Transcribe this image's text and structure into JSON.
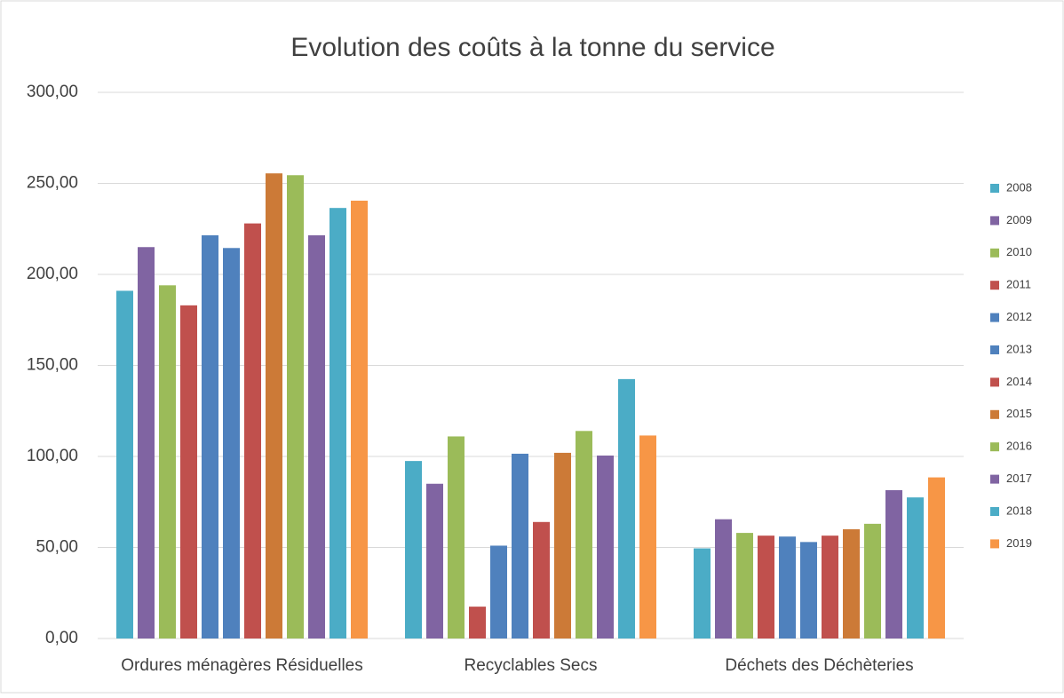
{
  "chart_data": {
    "type": "bar",
    "title": "Evolution des coûts à la tonne du service",
    "categories": [
      "Ordures ménagères Résiduelles",
      "Recyclables Secs",
      "Déchets des Déchèteries"
    ],
    "series": [
      {
        "name": "2008",
        "color": "#4bacc6",
        "values": [
          191,
          97.5,
          49.5
        ]
      },
      {
        "name": "2009",
        "color": "#8064a2",
        "values": [
          215,
          85,
          65.5
        ]
      },
      {
        "name": "2010",
        "color": "#9bbb59",
        "values": [
          194,
          111,
          58
        ]
      },
      {
        "name": "2011",
        "color": "#c0504d",
        "values": [
          183,
          17.5,
          56.5
        ]
      },
      {
        "name": "2012",
        "color": "#4f81bd",
        "values": [
          221.5,
          51,
          56
        ]
      },
      {
        "name": "2013",
        "color": "#4f81bd",
        "values": [
          214.5,
          101.5,
          53
        ]
      },
      {
        "name": "2014",
        "color": "#c0504d",
        "values": [
          228,
          64,
          56.5
        ]
      },
      {
        "name": "2015",
        "color": "#cc7a37",
        "values": [
          255.5,
          102,
          60
        ]
      },
      {
        "name": "2016",
        "color": "#9bbb59",
        "values": [
          254.5,
          114,
          63
        ]
      },
      {
        "name": "2017",
        "color": "#8064a2",
        "values": [
          221.5,
          100.5,
          81.5
        ]
      },
      {
        "name": "2018",
        "color": "#4bacc6",
        "values": [
          236.5,
          142.5,
          77.5
        ]
      },
      {
        "name": "2019",
        "color": "#f79646",
        "values": [
          240.5,
          111.5,
          88.5
        ]
      }
    ],
    "ylim": [
      0,
      300
    ],
    "yticks": [
      {
        "value": 0,
        "label": "0,00"
      },
      {
        "value": 50,
        "label": "50,00"
      },
      {
        "value": 100,
        "label": "100,00"
      },
      {
        "value": 150,
        "label": "150,00"
      },
      {
        "value": 200,
        "label": "200,00"
      },
      {
        "value": 250,
        "label": "250,00"
      },
      {
        "value": 300,
        "label": "300,00"
      }
    ],
    "grid": true,
    "legend": "right"
  }
}
